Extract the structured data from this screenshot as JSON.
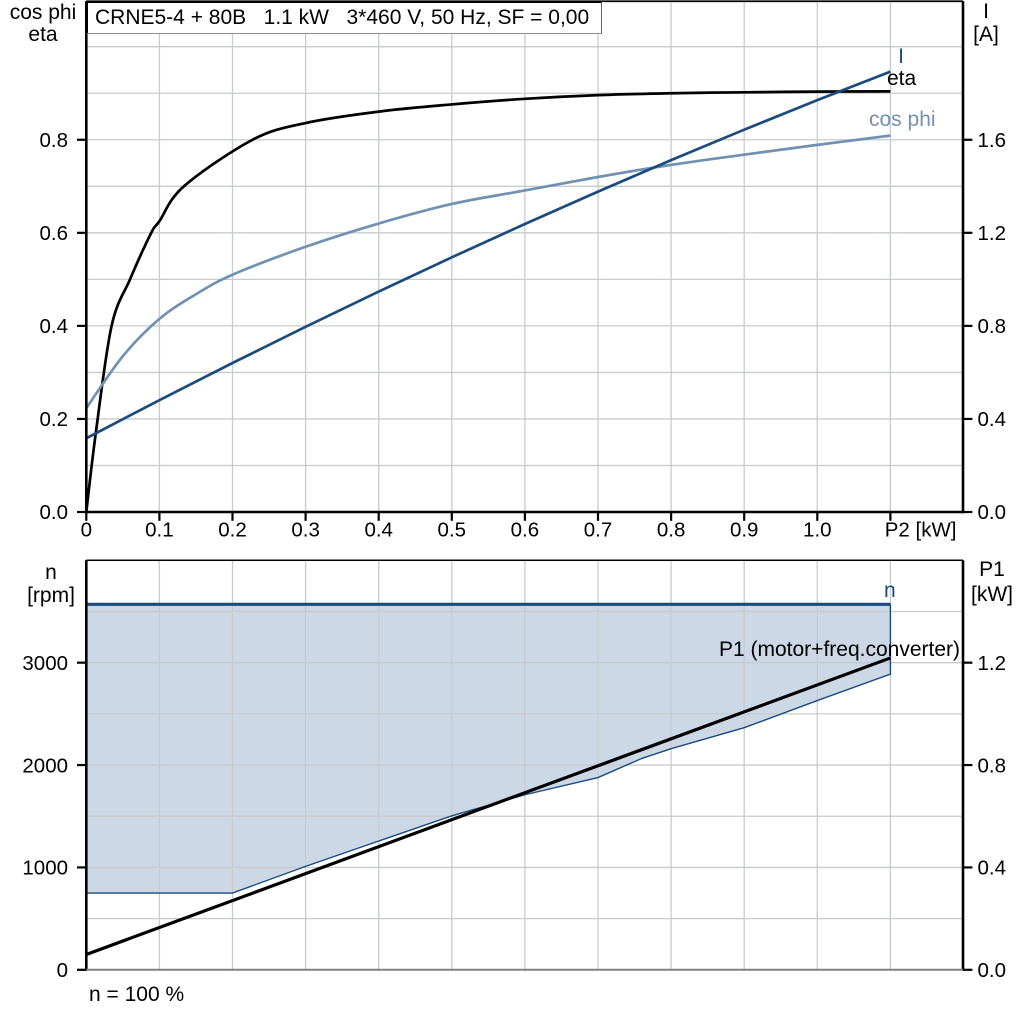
{
  "header": {
    "title": "CRNE5-4 + 80B   1.1 kW   3*460 V, 50 Hz, SF = 0,00"
  },
  "colors": {
    "background": "#ffffff",
    "grid": "#c8cbce",
    "frame": "#000000",
    "bottom_axis_line": "#808080",
    "eta_curve": "#000000",
    "cos_phi_curve": "#7191b1",
    "current_curve": "#1b4a7d",
    "speed_fill": "#ccd8e5",
    "speed_line": "#1b4a7d",
    "p1_line": "#000000",
    "text": "#000000"
  },
  "chart_data": [
    {
      "type": "line",
      "title": "CRNE5-4 + 80B   1.1 kW   3*460 V, 50 Hz, SF = 0,00",
      "x_axis": {
        "label": "P2 [kW]",
        "min": 0,
        "max": 1.1993,
        "tick_values": [
          0,
          0.1,
          0.2,
          0.3,
          0.4,
          0.5,
          0.6,
          0.7,
          0.8,
          0.9,
          1.0
        ],
        "tick_labels": [
          "0",
          "0.1",
          "0.2",
          "0.3",
          "0.4",
          "0.5",
          "0.6",
          "0.7",
          "0.8",
          "0.9",
          "1.0"
        ],
        "grid_values": [
          0.1,
          0.2,
          0.3,
          0.4,
          0.5,
          0.6,
          0.7,
          0.8,
          0.9,
          1.0,
          1.1
        ]
      },
      "y_left_axis": {
        "title_lines": [
          "cos phi",
          "eta"
        ],
        "min": 0,
        "max": 1.0977,
        "tick_values": [
          0.0,
          0.2,
          0.4,
          0.6,
          0.8
        ],
        "tick_labels": [
          "0.0",
          "0.2",
          "0.4",
          "0.6",
          "0.8"
        ],
        "grid_values": [
          0.1,
          0.2,
          0.3,
          0.4,
          0.5,
          0.6,
          0.7,
          0.8,
          0.9,
          1.0
        ]
      },
      "y_right_axis": {
        "title_lines": [
          "I",
          "[A]"
        ],
        "min": 0,
        "max": 2.1954,
        "tick_values": [
          0.0,
          0.4,
          0.8,
          1.2,
          1.6
        ],
        "tick_labels": [
          "0.0",
          "0.4",
          "0.8",
          "1.2",
          "1.6"
        ]
      },
      "series": [
        {
          "name": "eta",
          "axis": "left",
          "color_key": "eta_curve",
          "width": 2.7,
          "points": [
            [
              0,
              0
            ],
            [
              0.013,
              0.17
            ],
            [
              0.0346,
              0.4
            ],
            [
              0.0598,
              0.5
            ],
            [
              0.0888,
              0.6
            ],
            [
              0.1,
              0.625
            ],
            [
              0.1335,
              0.7
            ],
            [
              0.2274,
              0.8
            ],
            [
              0.3,
              0.836
            ],
            [
              0.4,
              0.8605
            ],
            [
              0.5,
              0.876
            ],
            [
              0.6,
              0.888
            ],
            [
              0.7,
              0.896
            ],
            [
              0.8,
              0.9
            ],
            [
              0.9,
              0.902
            ],
            [
              1.0,
              0.9035
            ],
            [
              1.1,
              0.904
            ]
          ]
        },
        {
          "name": "cos phi",
          "axis": "left",
          "color_key": "cos_phi_curve",
          "width": 2.7,
          "points": [
            [
              0,
              0.223
            ],
            [
              0.05,
              0.335
            ],
            [
              0.1,
              0.415
            ],
            [
              0.15,
              0.468
            ],
            [
              0.2,
              0.51
            ],
            [
              0.3,
              0.57
            ],
            [
              0.4,
              0.62
            ],
            [
              0.5,
              0.662
            ],
            [
              0.6,
              0.691
            ],
            [
              0.7,
              0.72
            ],
            [
              0.8,
              0.746
            ],
            [
              0.9,
              0.768
            ],
            [
              1.0,
              0.789
            ],
            [
              1.1,
              0.809
            ]
          ]
        },
        {
          "name": "I",
          "axis": "right",
          "color_key": "current_curve",
          "width": 2.7,
          "points": [
            [
              0,
              0.317
            ],
            [
              0.1,
              0.4807
            ],
            [
              0.2,
              0.6404
            ],
            [
              0.3,
              0.7959
            ],
            [
              0.4,
              0.9474
            ],
            [
              0.5,
              1.0947
            ],
            [
              0.6,
              1.238
            ],
            [
              0.7,
              1.3772
            ],
            [
              0.8,
              1.5123
            ],
            [
              0.9,
              1.6433
            ],
            [
              1.0,
              1.7702
            ],
            [
              1.1,
              1.893
            ]
          ]
        }
      ],
      "curve_labels": [
        {
          "text": "I",
          "color_key": "current_curve"
        },
        {
          "text": "eta",
          "color_key": "eta_curve"
        },
        {
          "text": "cos phi",
          "color_key": "cos_phi_curve"
        }
      ]
    },
    {
      "type": "area",
      "x_axis": {
        "min": 0,
        "max": 1.1993,
        "grid_values": [
          0.1,
          0.2,
          0.3,
          0.4,
          0.5,
          0.6,
          0.7,
          0.8,
          0.9,
          1.0,
          1.1
        ]
      },
      "y_left_axis": {
        "title_lines": [
          "n",
          "[rpm]"
        ],
        "min": 0,
        "max": 4000,
        "tick_values": [
          0,
          1000,
          2000,
          3000
        ],
        "tick_labels": [
          "0",
          "1000",
          "2000",
          "3000"
        ],
        "grid_values": [
          500,
          1000,
          1500,
          2000,
          2500,
          3000,
          3500
        ]
      },
      "y_right_axis": {
        "title_lines": [
          "P1",
          "[kW]"
        ],
        "min": 0,
        "max": 1.6,
        "tick_values": [
          0.0,
          0.4,
          0.8,
          1.2
        ],
        "tick_labels": [
          "0.0",
          "0.4",
          "0.8",
          "1.2"
        ]
      },
      "speed_range": {
        "label": "n",
        "max_speed_rpm": 3570,
        "x_end": 1.1,
        "min_boundary_points": [
          [
            0,
            750
          ],
          [
            0.2,
            750
          ],
          [
            0.3,
            1010
          ],
          [
            0.4,
            1258
          ],
          [
            0.5,
            1504
          ],
          [
            0.6,
            1710
          ],
          [
            0.7,
            1878
          ],
          [
            0.76,
            2065
          ],
          [
            0.8,
            2160
          ],
          [
            0.9,
            2365
          ],
          [
            1.0,
            2630
          ],
          [
            1.1,
            2888
          ]
        ]
      },
      "series": [
        {
          "name": "P1 (motor+freq.converter)",
          "axis": "right",
          "color_key": "p1_line",
          "width": 3.2,
          "points": [
            [
              0,
              0.0598
            ],
            [
              1.1,
              1.2185
            ]
          ]
        }
      ],
      "curve_labels": [
        {
          "text": "n",
          "color_key": "speed_line"
        },
        {
          "text": "P1 (motor+freq.converter)",
          "color_key": "p1_line"
        }
      ],
      "footnote": "n = 100 %"
    }
  ]
}
